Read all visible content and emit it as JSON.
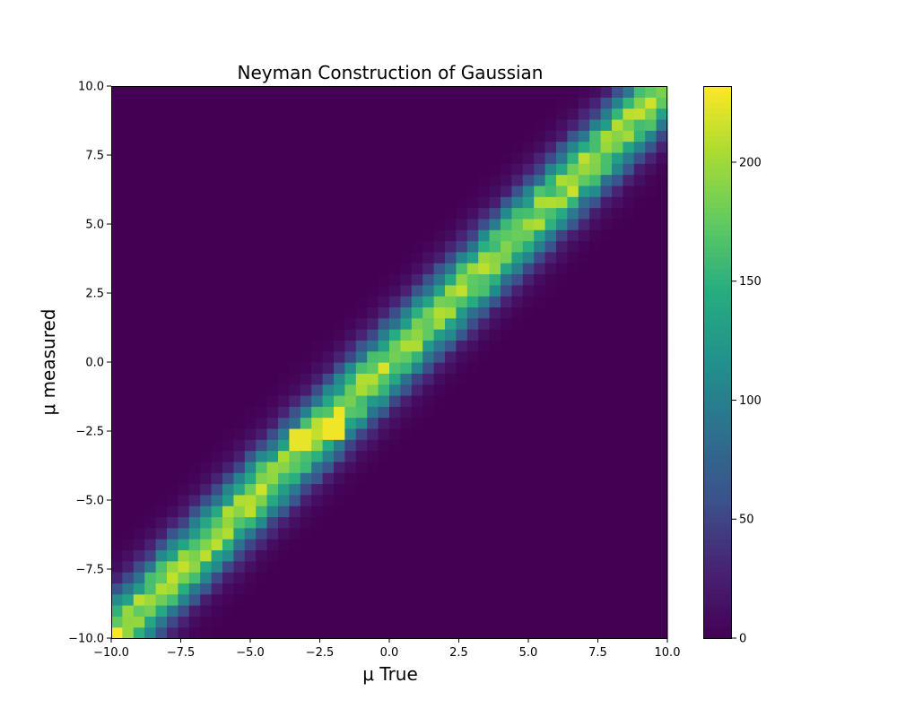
{
  "chart_data": {
    "type": "heatmap",
    "title": "Neyman Construction of Gaussian",
    "xlabel": "μ True",
    "ylabel": "μ measured",
    "xlim": [
      -10.0,
      10.0
    ],
    "ylim": [
      -10.0,
      10.0
    ],
    "x_ticks": [
      -10.0,
      -7.5,
      -5.0,
      -2.5,
      0.0,
      2.5,
      5.0,
      7.5,
      10.0
    ],
    "y_ticks": [
      -10.0,
      -7.5,
      -5.0,
      -2.5,
      0.0,
      2.5,
      5.0,
      7.5,
      10.0
    ],
    "x_tick_labels": [
      "−10.0",
      "−7.5",
      "−5.0",
      "−2.5",
      "0.0",
      "2.5",
      "5.0",
      "7.5",
      "10.0"
    ],
    "y_tick_labels": [
      "−10.0",
      "−7.5",
      "−5.0",
      "−2.5",
      "0.0",
      "2.5",
      "5.0",
      "7.5",
      "10.0"
    ],
    "bins_x": 50,
    "bins_y": 50,
    "distribution": {
      "description_model": "y = x + gaussian noise",
      "sigma": 1.0,
      "peak_count": 200
    },
    "hotspots": [
      {
        "x": -9.8,
        "y": -9.8,
        "value": 232
      },
      {
        "x": -3.2,
        "y": -2.8,
        "value": 225
      },
      {
        "x": -2.0,
        "y": -2.4,
        "value": 228
      },
      {
        "x": 6.6,
        "y": 6.2,
        "value": 215
      }
    ],
    "colorbar": {
      "min": 0,
      "max": 232,
      "ticks": [
        0,
        50,
        100,
        150,
        200
      ],
      "tick_labels": [
        "0",
        "50",
        "100",
        "150",
        "200"
      ],
      "colormap": "viridis"
    },
    "grid": false
  }
}
